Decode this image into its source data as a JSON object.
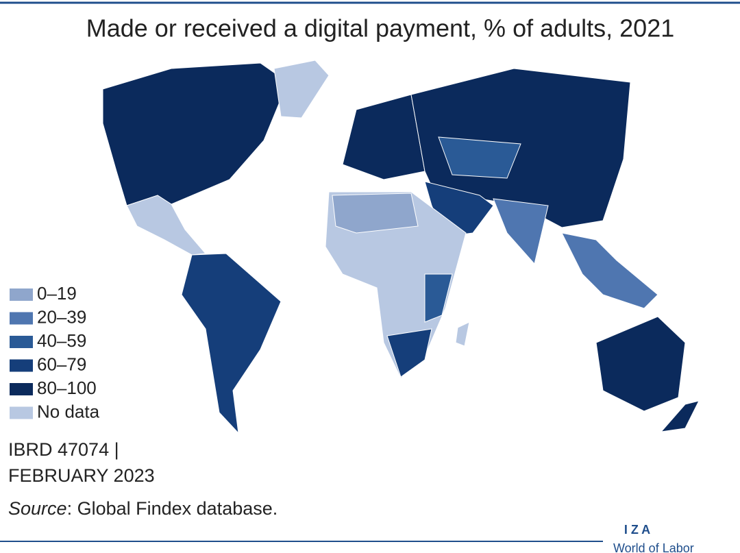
{
  "title": "Made or received a digital payment, % of adults, 2021",
  "legend": [
    {
      "label": "0–19",
      "color": "#8fa6cc"
    },
    {
      "label": "20–39",
      "color": "#4f76b0"
    },
    {
      "label": "40–59",
      "color": "#2a5a96"
    },
    {
      "label": "60–79",
      "color": "#153e7a"
    },
    {
      "label": "80–100",
      "color": "#0b2a5c"
    },
    {
      "label": "No data",
      "color": "#b8c8e2"
    }
  ],
  "map_id": "IBRD 47074 |",
  "map_date": "FEBRUARY 2023",
  "source_label": "Source",
  "source_text": ": Global Findex database.",
  "logo": "I Z A",
  "logo_sub": "World of Labor"
}
